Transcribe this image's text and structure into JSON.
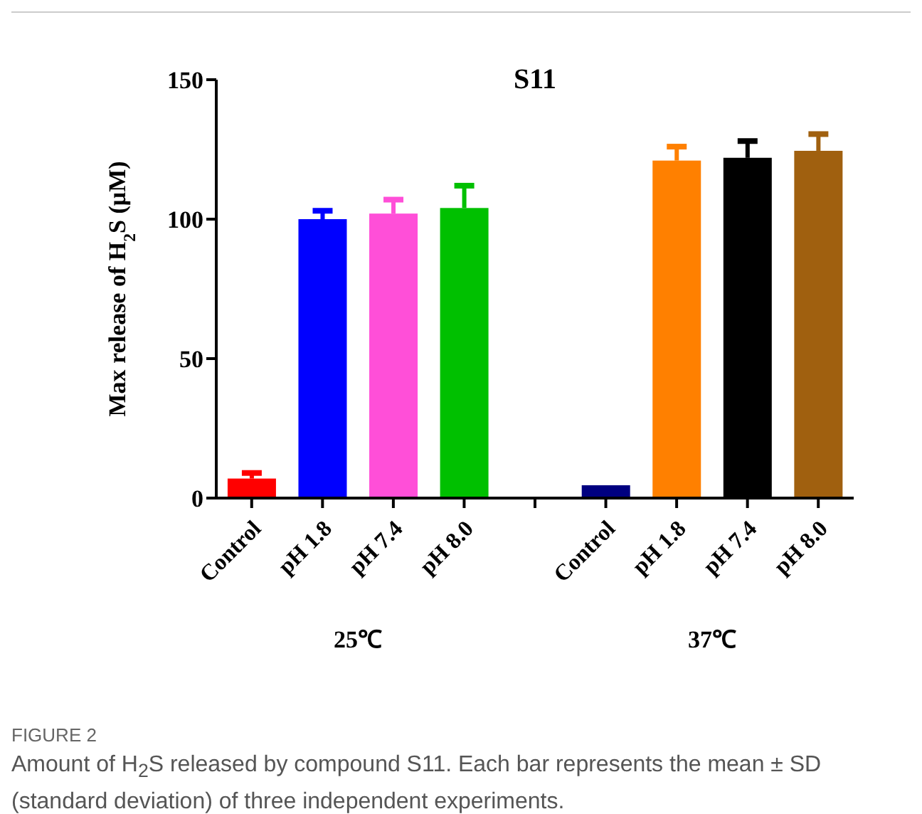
{
  "chart_data": {
    "type": "bar",
    "title": "S11",
    "ylabel": "Max release of H$_{2}$S (μM)",
    "categories": [
      "Control",
      "pH 1.8",
      "pH 7.4",
      "pH 8.0",
      null,
      "Control",
      "pH 1.8",
      "pH 7.4",
      "pH 8.0"
    ],
    "values": [
      7,
      100,
      102,
      104,
      null,
      4.6,
      121,
      122,
      124.5
    ],
    "errors": [
      2,
      3,
      5,
      8,
      null,
      null,
      5,
      6,
      6
    ],
    "colors": [
      "#ff0000",
      "#0000ff",
      "#ff4fd8",
      "#00c000",
      "#ffffff",
      "#000080",
      "#ff8000",
      "#000000",
      "#a0600f"
    ],
    "ylim": [
      0,
      150
    ],
    "yticks": [
      0,
      50,
      100,
      150
    ],
    "grid": false,
    "legend": false,
    "annotations": [
      "25℃",
      "37℃",
      "FIGURE 2",
      "Amount of H$_{2}$S released by compound S11. Each bar represents the mean ± SD (standard deviation) of three independent experiments."
    ]
  }
}
